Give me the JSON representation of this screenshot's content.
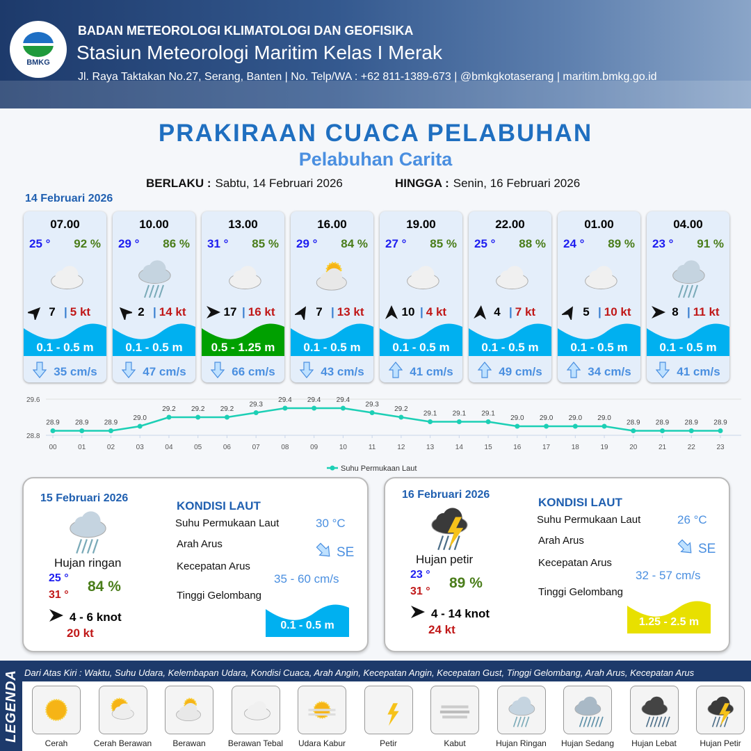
{
  "header": {
    "logo_text": "BMKG",
    "agency": "BADAN METEOROLOGI KLIMATOLOGI DAN GEOFISIKA",
    "station": "Stasiun Meteorologi Maritim Kelas I Merak",
    "address": "Jl. Raya Taktakan No.27, Serang, Banten | No. Telp/WA : +62 811-1389-673 | @bmkgkotaserang | maritim.bmkg.go.id"
  },
  "title": "PRAKIRAAN CUACA PELABUHAN",
  "subtitle": "Pelabuhan Carita",
  "validity": {
    "from_label": "BERLAKU :",
    "from": "Sabtu, 14 Februari 2026",
    "to_label": "HINGGA :",
    "to": "Senin, 16 Februari 2026"
  },
  "day1": {
    "date": "14 Februari 2026",
    "cards": [
      {
        "time": "07.00",
        "temp": "25 °",
        "hum": "92 %",
        "weather": "berawan-tebal",
        "wind_dir_deg": 45,
        "wind": "7",
        "gust": "5 kt",
        "wave": "0.1 - 0.5 m",
        "wave_color": "#00b0f0",
        "current_dir": "down",
        "current": "35 cm/s"
      },
      {
        "time": "10.00",
        "temp": "29 °",
        "hum": "86 %",
        "weather": "hujan-ringan",
        "wind_dir_deg": -45,
        "wind": "2",
        "gust": "14 kt",
        "wave": "0.1 - 0.5 m",
        "wave_color": "#00b0f0",
        "current_dir": "down",
        "current": "47 cm/s"
      },
      {
        "time": "13.00",
        "temp": "31 °",
        "hum": "85 %",
        "weather": "berawan-tebal",
        "wind_dir_deg": 90,
        "wind": "17",
        "gust": "16 kt",
        "wave": "0.5 - 1.25 m",
        "wave_color": "#00a000",
        "current_dir": "down",
        "current": "66 cm/s"
      },
      {
        "time": "16.00",
        "temp": "29 °",
        "hum": "84 %",
        "weather": "berawan",
        "wind_dir_deg": 30,
        "wind": "7",
        "gust": "13 kt",
        "wave": "0.1 - 0.5 m",
        "wave_color": "#00b0f0",
        "current_dir": "down",
        "current": "43 cm/s"
      },
      {
        "time": "19.00",
        "temp": "27 °",
        "hum": "85 %",
        "weather": "berawan-tebal",
        "wind_dir_deg": 0,
        "wind": "10",
        "gust": "4 kt",
        "wave": "0.1 - 0.5 m",
        "wave_color": "#00b0f0",
        "current_dir": "up",
        "current": "41 cm/s"
      },
      {
        "time": "22.00",
        "temp": "25 °",
        "hum": "88 %",
        "weather": "berawan-tebal",
        "wind_dir_deg": 5,
        "wind": "4",
        "gust": "7 kt",
        "wave": "0.1 - 0.5 m",
        "wave_color": "#00b0f0",
        "current_dir": "up",
        "current": "49 cm/s"
      },
      {
        "time": "01.00",
        "temp": "24 °",
        "hum": "89 %",
        "weather": "berawan-tebal",
        "wind_dir_deg": 30,
        "wind": "5",
        "gust": "10 kt",
        "wave": "0.1 - 0.5 m",
        "wave_color": "#00b0f0",
        "current_dir": "up",
        "current": "34 cm/s"
      },
      {
        "time": "04.00",
        "temp": "23 °",
        "hum": "91 %",
        "weather": "hujan-ringan",
        "wind_dir_deg": 90,
        "wind": "8",
        "gust": "11 kt",
        "wave": "0.1 - 0.5 m",
        "wave_color": "#00b0f0",
        "current_dir": "down",
        "current": "41 cm/s"
      }
    ]
  },
  "chart_data": {
    "type": "line",
    "categories": [
      "00",
      "01",
      "02",
      "03",
      "04",
      "05",
      "06",
      "07",
      "08",
      "09",
      "10",
      "11",
      "12",
      "13",
      "14",
      "15",
      "16",
      "17",
      "18",
      "19",
      "20",
      "21",
      "22",
      "23"
    ],
    "series": [
      {
        "name": "Suhu Permukaan Laut",
        "values": [
          28.9,
          28.9,
          28.9,
          29.0,
          29.2,
          29.2,
          29.2,
          29.3,
          29.4,
          29.4,
          29.4,
          29.3,
          29.2,
          29.1,
          29.1,
          29.1,
          29.0,
          29.0,
          29.0,
          29.0,
          28.9,
          28.9,
          28.9,
          28.9
        ],
        "color": "#1ccfb5"
      }
    ],
    "yticks": [
      "29.6",
      "28.8"
    ],
    "ylim": [
      28.8,
      29.6
    ],
    "legend": "bottom"
  },
  "panels": [
    {
      "date": "15 Februari 2026",
      "weather": "hujan-ringan",
      "weather_label": "Hujan ringan",
      "tmin": "25 °",
      "tmax": "31 °",
      "hum": "84 %",
      "wind": "4  - 6 knot",
      "gust": "20 kt",
      "kondisi": "KONDISI LAUT",
      "sst_label": "Suhu Permukaan Laut",
      "sst": "30 °C",
      "arus_label": "Arah Arus",
      "arus": "SE",
      "kec_label": "Kecepatan Arus",
      "kec": "35 - 60 cm/s",
      "tg_label": "Tinggi Gelombang",
      "tg": "0.1 - 0.5 m",
      "tg_color": "#00b0f0"
    },
    {
      "date": "16 Februari 2026",
      "weather": "hujan-petir",
      "weather_label": "Hujan petir",
      "tmin": "23 °",
      "tmax": "31 °",
      "hum": "89 %",
      "wind": "4  - 14 knot",
      "gust": "24 kt",
      "kondisi": "KONDISI LAUT",
      "sst_label": "Suhu Permukaan Laut",
      "sst": "26 °C",
      "arus_label": "Arah Arus",
      "arus": "SE",
      "kec_label": "Kecepatan Arus",
      "kec": "32 - 57 cm/s",
      "tg_label": "Tinggi Gelombang",
      "tg": "1.25 - 2.5 m",
      "tg_color": "#e8e000"
    }
  ],
  "legend": {
    "title": "LEGENDA",
    "description": "Dari Atas Kiri : Waktu, Suhu Udara, Kelembapan Udara, Kondisi Cuaca, Arah Angin, Kecepatan Angin, Kecepatan Gust, Tinggi Gelombang, Arah Arus, Kecepatan Arus",
    "items": [
      {
        "label": "Cerah",
        "icon": "cerah"
      },
      {
        "label": "Cerah Berawan",
        "icon": "cerah-berawan"
      },
      {
        "label": "Berawan",
        "icon": "berawan"
      },
      {
        "label": "Berawan Tebal",
        "icon": "berawan-tebal"
      },
      {
        "label": "Udara Kabur",
        "icon": "udara-kabur"
      },
      {
        "label": "Petir",
        "icon": "petir"
      },
      {
        "label": "Kabut",
        "icon": "kabut"
      },
      {
        "label": "Hujan Ringan",
        "icon": "hujan-ringan"
      },
      {
        "label": "Hujan Sedang",
        "icon": "hujan-sedang"
      },
      {
        "label": "Hujan Lebat",
        "icon": "hujan-lebat"
      },
      {
        "label": "Hujan Petir",
        "icon": "hujan-petir"
      }
    ]
  }
}
